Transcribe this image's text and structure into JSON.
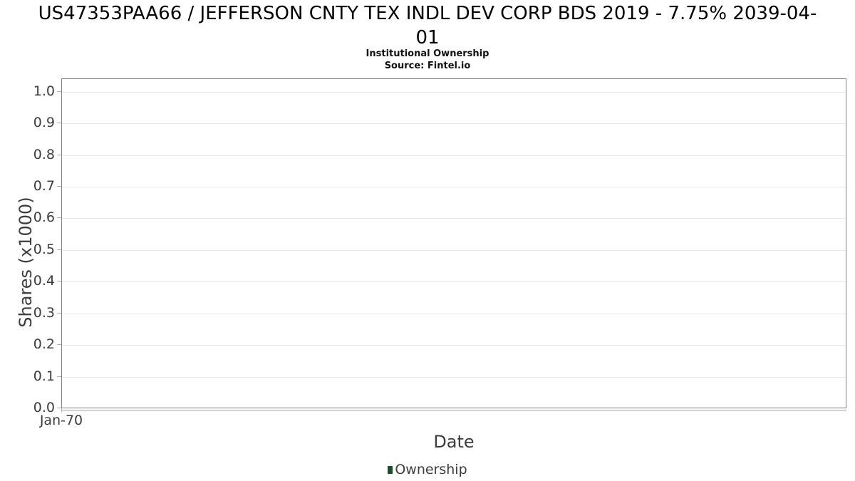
{
  "chart_data": {
    "type": "line",
    "title": "US47353PAA66 / JEFFERSON CNTY TEX INDL DEV CORP BDS 2019 - 7.75% 2039-04-01",
    "title_lines": [
      "US47353PAA66 / JEFFERSON CNTY TEX INDL DEV CORP BDS 2019 - 7.75% 2039-04-",
      "01"
    ],
    "subtitle": "Institutional Ownership",
    "source": "Source: Fintel.io",
    "xlabel": "Date",
    "ylabel": "Shares (x1000)",
    "ylim": [
      0,
      1.04
    ],
    "yticks": [
      "0.0",
      "0.1",
      "0.2",
      "0.3",
      "0.4",
      "0.5",
      "0.6",
      "0.7",
      "0.8",
      "0.9",
      "1.0"
    ],
    "xticks": [
      {
        "label": "Jan-70",
        "position": 0
      }
    ],
    "grid": "horizontal",
    "legend_position": "bottom-center",
    "series": [
      {
        "name": "Ownership",
        "color": "#1e4d2b",
        "points": []
      }
    ],
    "colors": {
      "grid": "#e8e8e8",
      "axis_border": "#808080",
      "tick_mark": "#b3b3b3",
      "axis_text": "#3d3d3d",
      "title_text": "#000000",
      "legend_marker": "#1e4d2b"
    }
  }
}
